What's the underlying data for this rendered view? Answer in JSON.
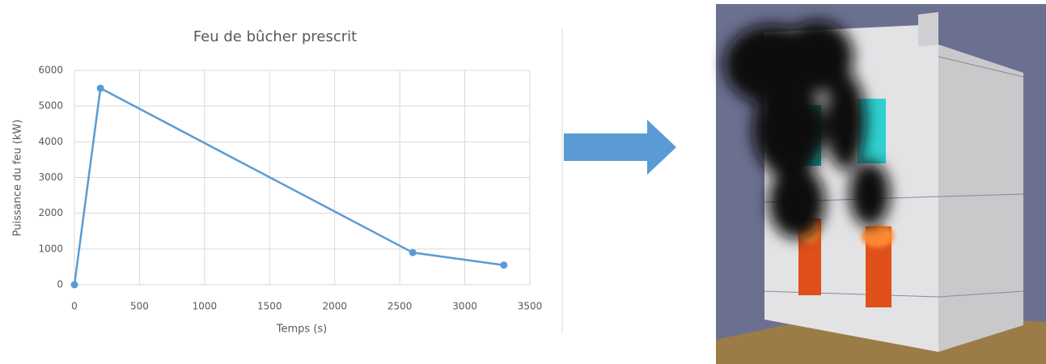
{
  "chart_data": {
    "type": "line",
    "title": "Feu de bûcher prescrit",
    "x_label": "Temps (s)",
    "y_label": "Puissance du feu (kW)",
    "x": [
      0,
      200,
      2600,
      3300
    ],
    "values": [
      0,
      5500,
      900,
      550
    ],
    "color": "#5b9bd5",
    "xlim": [
      0,
      3500
    ],
    "xticks": [
      0,
      500,
      1000,
      1500,
      2000,
      2500,
      3000,
      3500
    ],
    "ylim": [
      0,
      6000
    ],
    "yticks": [
      0,
      1000,
      2000,
      3000,
      4000,
      5000,
      6000
    ],
    "grid": true
  }
}
